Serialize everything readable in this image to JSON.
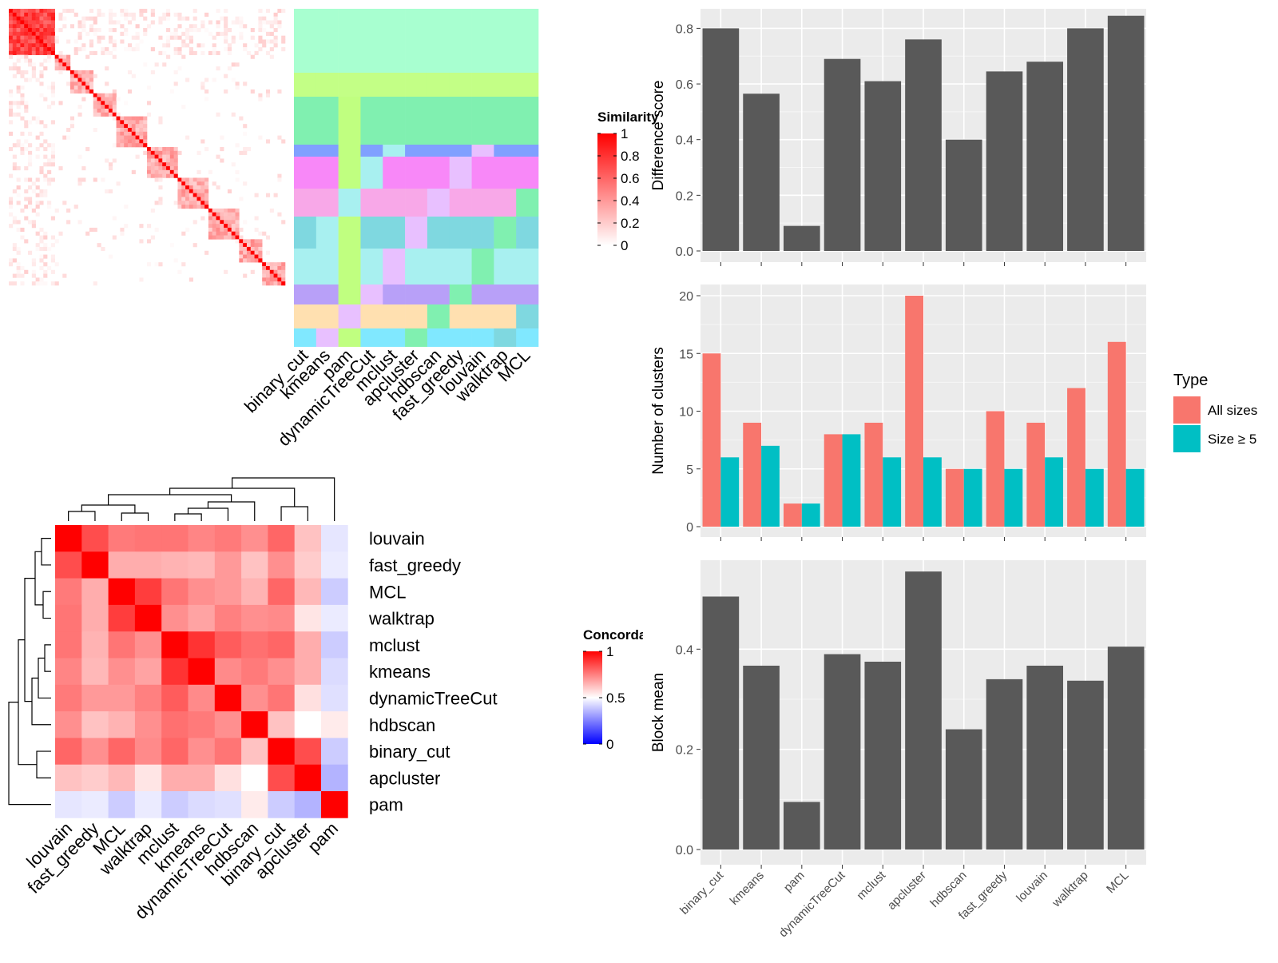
{
  "chart_data": [
    {
      "type": "heatmap",
      "panel": "similarity-heatmap",
      "legend_title": "Similarity",
      "legend_ticks": [
        "1",
        "0.8",
        "0.6",
        "0.4",
        "0.2",
        "0"
      ],
      "column_labels": [
        "binary_cut",
        "kmeans",
        "pam",
        "dynamicTreeCut",
        "mclust",
        "apcluster",
        "hdbscan",
        "fast_greedy",
        "louvain",
        "walktrap",
        "MCL"
      ],
      "colors": {
        "low": "#FFFFFF",
        "high": "#FF0000"
      }
    },
    {
      "type": "heatmap",
      "panel": "concordance-heatmap",
      "legend_title": "Concordance",
      "legend_ticks": [
        "1",
        "0.5",
        "0"
      ],
      "row_labels": [
        "louvain",
        "fast_greedy",
        "MCL",
        "walktrap",
        "mclust",
        "kmeans",
        "dynamicTreeCut",
        "hdbscan",
        "binary_cut",
        "apcluster",
        "pam"
      ],
      "column_labels": [
        "louvain",
        "fast_greedy",
        "MCL",
        "walktrap",
        "mclust",
        "kmeans",
        "dynamicTreeCut",
        "hdbscan",
        "binary_cut",
        "apcluster",
        "pam"
      ],
      "matrix": [
        [
          1.0,
          0.85,
          0.76,
          0.77,
          0.77,
          0.74,
          0.76,
          0.72,
          0.8,
          0.62,
          0.45
        ],
        [
          0.85,
          1.0,
          0.66,
          0.66,
          0.65,
          0.64,
          0.7,
          0.62,
          0.72,
          0.6,
          0.46
        ],
        [
          0.76,
          0.66,
          1.0,
          0.88,
          0.77,
          0.72,
          0.7,
          0.65,
          0.8,
          0.64,
          0.4
        ],
        [
          0.77,
          0.66,
          0.88,
          1.0,
          0.72,
          0.68,
          0.75,
          0.72,
          0.73,
          0.55,
          0.46
        ],
        [
          0.77,
          0.65,
          0.77,
          0.72,
          1.0,
          0.9,
          0.82,
          0.78,
          0.8,
          0.66,
          0.4
        ],
        [
          0.74,
          0.64,
          0.72,
          0.68,
          0.9,
          1.0,
          0.73,
          0.76,
          0.72,
          0.66,
          0.43
        ],
        [
          0.76,
          0.7,
          0.7,
          0.75,
          0.82,
          0.73,
          1.0,
          0.72,
          0.77,
          0.56,
          0.44
        ],
        [
          0.72,
          0.62,
          0.65,
          0.72,
          0.78,
          0.76,
          0.72,
          1.0,
          0.62,
          0.5,
          0.54
        ],
        [
          0.8,
          0.72,
          0.8,
          0.73,
          0.8,
          0.72,
          0.77,
          0.62,
          1.0,
          0.85,
          0.4
        ],
        [
          0.62,
          0.6,
          0.64,
          0.55,
          0.66,
          0.66,
          0.56,
          0.5,
          0.85,
          1.0,
          0.35
        ],
        [
          0.45,
          0.46,
          0.4,
          0.46,
          0.4,
          0.43,
          0.44,
          0.54,
          0.4,
          0.35,
          1.0
        ]
      ],
      "colors": {
        "low": "#0000FF",
        "mid": "#FFFFFF",
        "high": "#FF0000"
      }
    },
    {
      "type": "bar",
      "panel": "difference-score",
      "ylabel": "Difference score",
      "ylim": [
        0,
        0.85
      ],
      "yticks": [
        0,
        0.2,
        0.4,
        0.6,
        0.8
      ],
      "ytick_labels": [
        "0.0",
        "0.2",
        "0.4",
        "0.6",
        "0.8"
      ],
      "categories": [
        "binary_cut",
        "kmeans",
        "pam",
        "dynamicTreeCut",
        "mclust",
        "apcluster",
        "hdbscan",
        "fast_greedy",
        "louvain",
        "walktrap",
        "MCL"
      ],
      "values": [
        0.8,
        0.565,
        0.09,
        0.69,
        0.61,
        0.76,
        0.4,
        0.645,
        0.68,
        0.8,
        0.845
      ],
      "bar_color": "#595959",
      "grid": true
    },
    {
      "type": "bar",
      "panel": "number-of-clusters",
      "ylabel": "Number of clusters",
      "ylim": [
        0,
        20
      ],
      "yticks": [
        0,
        5,
        10,
        15,
        20
      ],
      "ytick_labels": [
        "0",
        "5",
        "10",
        "15",
        "20"
      ],
      "categories": [
        "binary_cut",
        "kmeans",
        "pam",
        "dynamicTreeCut",
        "mclust",
        "apcluster",
        "hdbscan",
        "fast_greedy",
        "louvain",
        "walktrap",
        "MCL"
      ],
      "legend_title": "Type",
      "legend_position": "right",
      "series": [
        {
          "name": "All sizes",
          "color": "#F8766D",
          "values": [
            15,
            9,
            2,
            8,
            9,
            20,
            5,
            10,
            9,
            12,
            16
          ]
        },
        {
          "name": "Size ≥ 5",
          "color": "#00BFC4",
          "values": [
            6,
            7,
            2,
            8,
            6,
            6,
            5,
            5,
            6,
            5,
            5
          ]
        }
      ],
      "grid": true
    },
    {
      "type": "bar",
      "panel": "block-mean",
      "ylabel": "Block mean",
      "ylim": [
        0,
        0.56
      ],
      "yticks": [
        0,
        0.2,
        0.4
      ],
      "ytick_labels": [
        "0.0",
        "0.2",
        "0.4"
      ],
      "categories": [
        "binary_cut",
        "kmeans",
        "pam",
        "dynamicTreeCut",
        "mclust",
        "apcluster",
        "hdbscan",
        "fast_greedy",
        "louvain",
        "walktrap",
        "MCL"
      ],
      "values": [
        0.505,
        0.367,
        0.095,
        0.39,
        0.375,
        0.555,
        0.24,
        0.34,
        0.367,
        0.337,
        0.405
      ],
      "bar_color": "#595959",
      "grid": true
    }
  ]
}
